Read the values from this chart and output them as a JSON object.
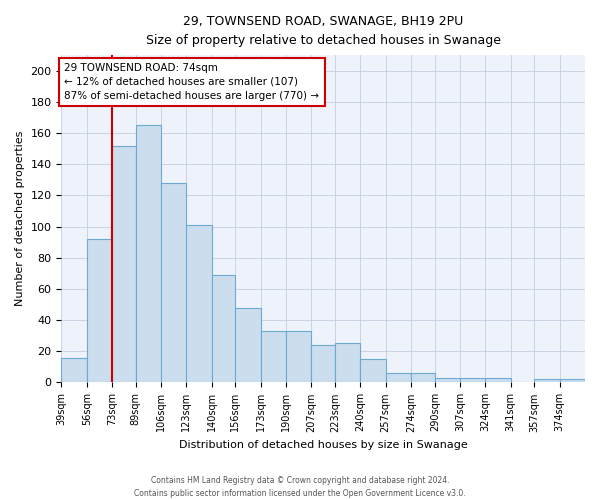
{
  "title": "29, TOWNSEND ROAD, SWANAGE, BH19 2PU",
  "subtitle": "Size of property relative to detached houses in Swanage",
  "xlabel": "Distribution of detached houses by size in Swanage",
  "ylabel": "Number of detached properties",
  "bin_edges": [
    39,
    56,
    73,
    89,
    106,
    123,
    140,
    156,
    173,
    190,
    207,
    223,
    240,
    257,
    274,
    290,
    307,
    324,
    341,
    357,
    374,
    391
  ],
  "bin_labels": [
    "39sqm",
    "56sqm",
    "73sqm",
    "89sqm",
    "106sqm",
    "123sqm",
    "140sqm",
    "156sqm",
    "173sqm",
    "190sqm",
    "207sqm",
    "223sqm",
    "240sqm",
    "257sqm",
    "274sqm",
    "290sqm",
    "307sqm",
    "324sqm",
    "341sqm",
    "357sqm",
    "374sqm"
  ],
  "bar_heights": [
    16,
    92,
    152,
    165,
    128,
    101,
    69,
    48,
    33,
    33,
    24,
    25,
    15,
    6,
    6,
    3,
    3,
    3,
    0,
    2,
    2
  ],
  "bar_color": "#ccdded",
  "bar_edge_color": "#6aaad4",
  "bg_color": "#eef2fa",
  "grid_color": "#c5cfe0",
  "property_line_x": 73,
  "property_line_color": "#cc0000",
  "annotation_text": "29 TOWNSEND ROAD: 74sqm\n← 12% of detached houses are smaller (107)\n87% of semi-detached houses are larger (770) →",
  "annotation_box_color": "#cc0000",
  "ylim": [
    0,
    210
  ],
  "yticks": [
    0,
    20,
    40,
    60,
    80,
    100,
    120,
    140,
    160,
    180,
    200
  ],
  "footer_line1": "Contains HM Land Registry data © Crown copyright and database right 2024.",
  "footer_line2": "Contains public sector information licensed under the Open Government Licence v3.0."
}
